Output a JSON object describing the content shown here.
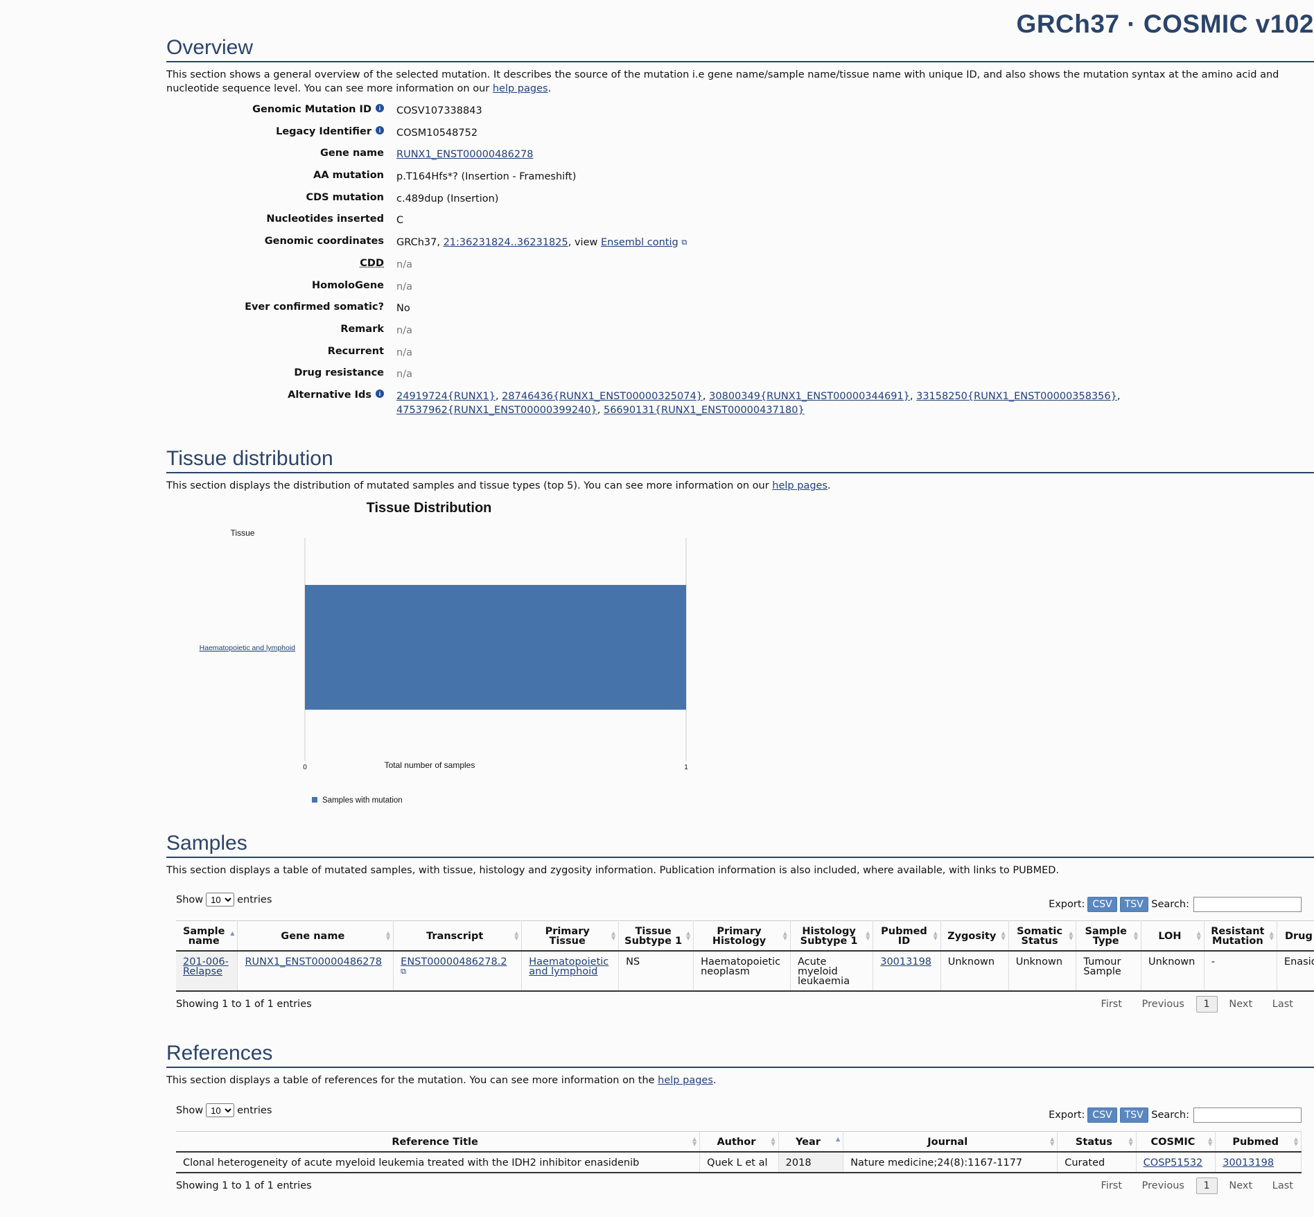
{
  "header": {
    "title": "GRCh37 · COSMIC v102"
  },
  "overview": {
    "heading": "Overview",
    "desc_pre": "This section shows a general overview of the selected mutation. It describes the source of the mutation i.e gene name/sample name/tissue name with unique ID, and also shows the mutation syntax at the amino acid and nucleotide sequence level. You can see more information on our ",
    "help_link": "help pages",
    "desc_post": ".",
    "genomic_mutation_id": {
      "label": "Genomic Mutation ID",
      "value": "COSV107338843"
    },
    "legacy_identifier": {
      "label": "Legacy Identifier",
      "value": "COSM10548752"
    },
    "gene_name": {
      "label": "Gene name",
      "value": "RUNX1_ENST00000486278"
    },
    "aa_mutation": {
      "label": "AA mutation",
      "value": "p.T164Hfs*? (Insertion - Frameshift)"
    },
    "cds_mutation": {
      "label": "CDS mutation",
      "value": "c.489dup (Insertion)"
    },
    "nucleotides_inserted": {
      "label": "Nucleotides inserted",
      "value": "C"
    },
    "genomic_coordinates": {
      "label": "Genomic coordinates",
      "prefix": "GRCh37, ",
      "coords": "21:36231824..36231825",
      "mid": ", view ",
      "ensembl": "Ensembl contig"
    },
    "cdd": {
      "label": "CDD",
      "value": "n/a"
    },
    "homologene": {
      "label": "HomoloGene",
      "value": "n/a"
    },
    "ever_confirmed": {
      "label": "Ever confirmed somatic?",
      "value": "No"
    },
    "remark": {
      "label": "Remark",
      "value": "n/a"
    },
    "recurrent": {
      "label": "Recurrent",
      "value": "n/a"
    },
    "drug_resistance": {
      "label": "Drug resistance",
      "value": "n/a"
    },
    "alternative_ids": {
      "label": "Alternative Ids",
      "ids": [
        "24919724{RUNX1}",
        "28746436{RUNX1_ENST00000325074}",
        "30800349{RUNX1_ENST00000344691}",
        "33158250{RUNX1_ENST00000358356}",
        "47537962{RUNX1_ENST00000399240}",
        "56690131{RUNX1_ENST00000437180}"
      ],
      "sep": ", "
    }
  },
  "tissue": {
    "heading": "Tissue distribution",
    "desc_pre": "This section displays the distribution of mutated samples and tissue types (top 5). You can see more information on our ",
    "help_link": "help pages",
    "desc_post": "."
  },
  "chart_data": {
    "type": "bar",
    "orientation": "horizontal",
    "title": "Tissue Distribution",
    "ylabel": "Tissue",
    "xlabel": "Total number of samples",
    "categories": [
      "Haematopoietic and lymphoid"
    ],
    "series": [
      {
        "name": "Samples with mutation",
        "values": [
          1
        ],
        "color": "#4674aa"
      }
    ],
    "xlim": [
      0,
      1
    ],
    "xticks": [
      "0",
      "1"
    ],
    "legend": "bottom-left"
  },
  "samples": {
    "heading": "Samples",
    "desc": "This section displays a table of mutated samples, with tissue, histology and zygosity information. Publication information is also included, where available, with links to PUBMED.",
    "show": "Show",
    "entries": "entries",
    "page_size": "10",
    "export": "Export:",
    "csv": "CSV",
    "tsv": "TSV",
    "search": "Search:",
    "columns": [
      "Sample name",
      "Gene name",
      "Transcript",
      "Primary Tissue",
      "Tissue Subtype 1",
      "Primary Histology",
      "Histology Subtype 1",
      "Pubmed ID",
      "Zygosity",
      "Somatic Status",
      "Sample Type",
      "LOH",
      "Resistant Mutation",
      "Drug"
    ],
    "row": {
      "sample": "201-006-Relapse",
      "gene": "RUNX1_ENST00000486278",
      "transcript": "ENST00000486278.2",
      "primary_tissue": "Haematopoietic and lymphoid",
      "tissue_subtype": "NS",
      "primary_histology": "Haematopoietic neoplasm",
      "histology_subtype": "Acute myeloid leukaemia",
      "pubmed": "30013198",
      "zygosity": "Unknown",
      "somatic_status": "Unknown",
      "sample_type": "Tumour Sample",
      "loh": "Unknown",
      "resistant": "-",
      "drug": "Enasid"
    },
    "info": "Showing 1 to 1 of 1 entries",
    "paging": {
      "first": "First",
      "previous": "Previous",
      "current": "1",
      "next": "Next",
      "last": "Last"
    }
  },
  "references": {
    "heading": "References",
    "desc_pre": "This section displays a table of references for the mutation. You can see more information on the ",
    "help_link": "help pages",
    "desc_post": ".",
    "show": "Show",
    "entries": "entries",
    "page_size": "10",
    "export": "Export:",
    "csv": "CSV",
    "tsv": "TSV",
    "search": "Search:",
    "columns": [
      "Reference Title",
      "Author",
      "Year",
      "Journal",
      "Status",
      "COSMIC",
      "Pubmed"
    ],
    "row": {
      "title": "Clonal heterogeneity of acute myeloid leukemia treated with the IDH2 inhibitor enasidenib",
      "author": "Quek L et al",
      "year": "2018",
      "journal": "Nature medicine;24(8):1167-1177",
      "status": "Curated",
      "cosmic": "COSP51532",
      "pubmed": "30013198"
    },
    "info": "Showing 1 to 1 of 1 entries",
    "paging": {
      "first": "First",
      "previous": "Previous",
      "current": "1",
      "next": "Next",
      "last": "Last"
    }
  }
}
